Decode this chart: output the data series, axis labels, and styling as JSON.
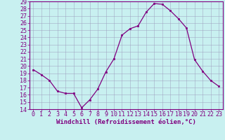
{
  "x": [
    0,
    1,
    2,
    3,
    4,
    5,
    6,
    7,
    8,
    9,
    10,
    11,
    12,
    13,
    14,
    15,
    16,
    17,
    18,
    19,
    20,
    21,
    22,
    23
  ],
  "y": [
    19.5,
    18.8,
    18.0,
    16.5,
    16.2,
    16.2,
    14.2,
    15.3,
    16.8,
    19.2,
    21.0,
    24.3,
    25.2,
    25.6,
    27.5,
    28.7,
    28.6,
    27.7,
    26.6,
    25.3,
    20.9,
    19.3,
    18.0,
    17.2
  ],
  "line_color": "#800080",
  "marker_color": "#800080",
  "bg_color": "#c8f0f0",
  "grid_color": "#9999bb",
  "xlabel": "Windchill (Refroidissement éolien,°C)",
  "ylim": [
    14,
    29
  ],
  "xlim": [
    -0.5,
    23.5
  ],
  "yticks": [
    14,
    15,
    16,
    17,
    18,
    19,
    20,
    21,
    22,
    23,
    24,
    25,
    26,
    27,
    28,
    29
  ],
  "xticks": [
    0,
    1,
    2,
    3,
    4,
    5,
    6,
    7,
    8,
    9,
    10,
    11,
    12,
    13,
    14,
    15,
    16,
    17,
    18,
    19,
    20,
    21,
    22,
    23
  ],
  "tick_color": "#800080",
  "label_color": "#800080",
  "spine_color": "#800080",
  "tick_fontsize": 6,
  "label_fontsize": 6.5
}
